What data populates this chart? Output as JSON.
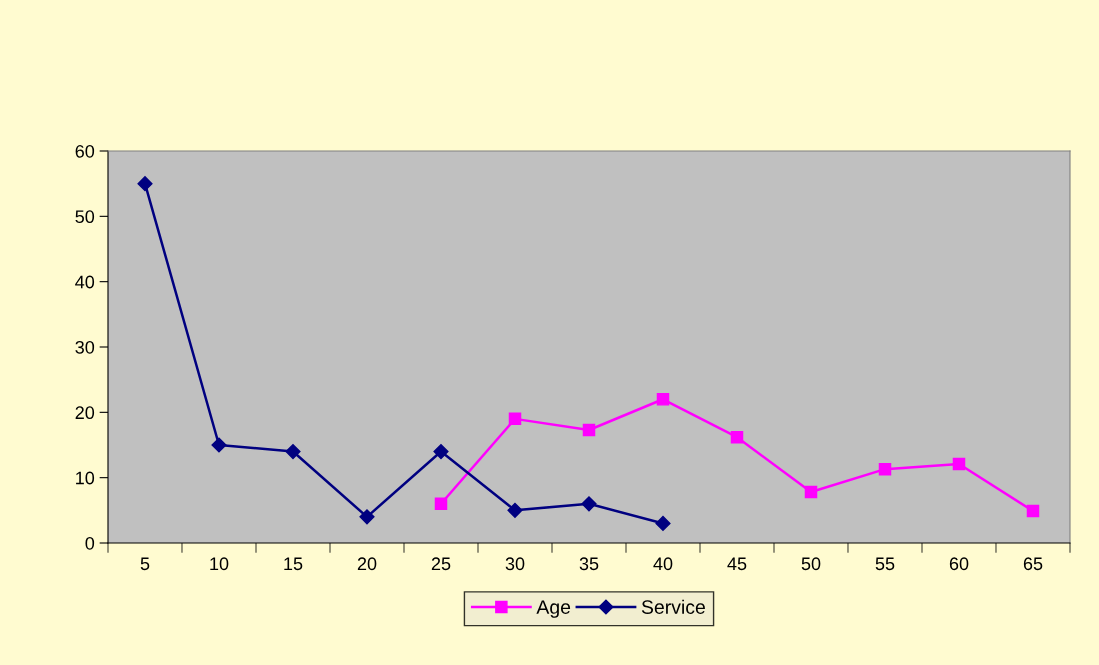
{
  "chart_data": {
    "type": "line",
    "categories": [
      "5",
      "10",
      "15",
      "20",
      "25",
      "30",
      "35",
      "40",
      "45",
      "50",
      "55",
      "60",
      "65"
    ],
    "series": [
      {
        "name": "Age",
        "color": "#ff00ff",
        "marker": "square",
        "values": [
          null,
          null,
          null,
          null,
          6,
          19,
          17.3,
          22,
          16.2,
          7.8,
          11.3,
          12.1,
          4.9
        ]
      },
      {
        "name": "Service",
        "color": "#000080",
        "marker": "diamond",
        "values": [
          55,
          15,
          14,
          4,
          14,
          5,
          6,
          3,
          null,
          null,
          null,
          null,
          null
        ]
      }
    ],
    "ylim": [
      0,
      60
    ],
    "yticks": [
      0,
      10,
      20,
      30,
      40,
      50,
      60
    ],
    "grid": false,
    "legend": "bottom"
  }
}
